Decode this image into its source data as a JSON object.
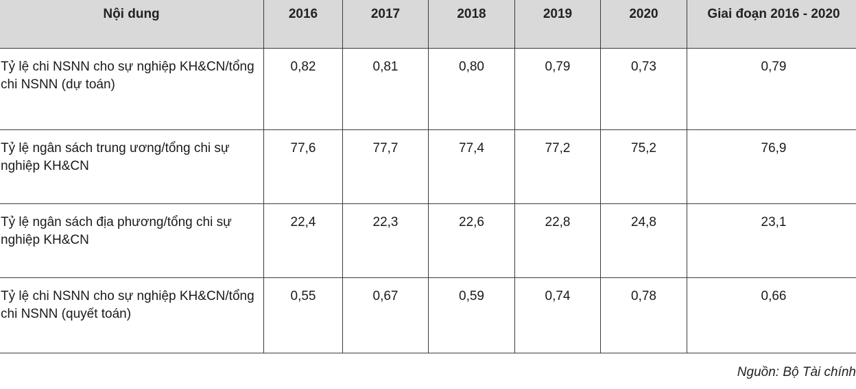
{
  "table": {
    "headers": [
      "Nội dung",
      "2016",
      "2017",
      "2018",
      "2019",
      "2020",
      "Giai đoạn 2016 - 2020"
    ],
    "rows": [
      {
        "label": "Tỷ lệ chi NSNN cho sự nghiệp KH&CN/tổng chi NSNN (dự toán)",
        "values": [
          "0,82",
          "0,81",
          "0,80",
          "0,79",
          "0,73",
          "0,79"
        ]
      },
      {
        "label": "Tỷ lệ ngân sách trung ương/tổng chi sự nghiệp KH&CN",
        "values": [
          "77,6",
          "77,7",
          "77,4",
          "77,2",
          "75,2",
          "76,9"
        ]
      },
      {
        "label": "Tỷ lệ ngân sách địa phương/tổng chi sự nghiệp KH&CN",
        "values": [
          "22,4",
          "22,3",
          "22,6",
          "22,8",
          "24,8",
          "23,1"
        ]
      },
      {
        "label": "Tỷ lệ chi NSNN cho sự nghiệp KH&CN/tổng chi NSNN (quyết toán)",
        "values": [
          "0,55",
          "0,67",
          "0,59",
          "0,74",
          "0,78",
          "0,66"
        ]
      }
    ]
  },
  "source": "Nguồn: Bộ Tài chính"
}
